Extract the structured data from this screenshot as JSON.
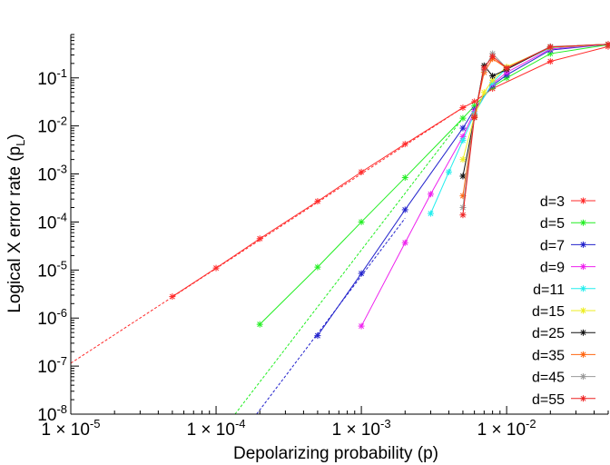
{
  "chart_data": {
    "type": "line",
    "title": "",
    "xlabel": "Depolarizing probability (p)",
    "ylabel": "Logical X error rate (p",
    "ylabel_sub": "L",
    "ylabel_end": ")",
    "x_scale": "log",
    "y_scale": "log",
    "xlim": [
      1e-05,
      0.05
    ],
    "ylim": [
      1e-08,
      0.8
    ],
    "x_ticks": [
      {
        "value": 1e-05,
        "prefix": "1 × 10",
        "exp": "-5"
      },
      {
        "value": 0.0001,
        "prefix": "1 × 10",
        "exp": "-4"
      },
      {
        "value": 0.001,
        "prefix": "1 × 10",
        "exp": "-3"
      },
      {
        "value": 0.01,
        "prefix": "1 × 10",
        "exp": "-2"
      }
    ],
    "y_ticks": [
      {
        "value": 1e-08,
        "prefix": "10",
        "exp": "-8"
      },
      {
        "value": 1e-07,
        "prefix": "10",
        "exp": "-7"
      },
      {
        "value": 1e-06,
        "prefix": "10",
        "exp": "-6"
      },
      {
        "value": 1e-05,
        "prefix": "10",
        "exp": "-5"
      },
      {
        "value": 0.0001,
        "prefix": "10",
        "exp": "-4"
      },
      {
        "value": 0.001,
        "prefix": "10",
        "exp": "-3"
      },
      {
        "value": 0.01,
        "prefix": "10",
        "exp": "-2"
      },
      {
        "value": 0.1,
        "prefix": "10",
        "exp": "-1"
      }
    ],
    "grid": false,
    "legend_position": "right",
    "series": [
      {
        "name": "d=3",
        "color": "#ff2a2a",
        "x": [
          5e-05,
          0.0001,
          0.0002,
          0.0005,
          0.001,
          0.002,
          0.005,
          0.006,
          0.008,
          0.02,
          0.05
        ],
        "y": [
          2.8e-06,
          1.1e-05,
          4.5e-05,
          0.00027,
          0.0011,
          0.0042,
          0.024,
          0.032,
          0.06,
          0.22,
          0.45
        ],
        "fit": {
          "x": [
            1e-05,
            0.005
          ],
          "y": [
            1.15e-07,
            0.024
          ]
        }
      },
      {
        "name": "d=5",
        "color": "#22ee22",
        "x": [
          0.0002,
          0.0005,
          0.001,
          0.002,
          0.005,
          0.006,
          0.008,
          0.01,
          0.02,
          0.05
        ],
        "y": [
          7.4e-07,
          1.15e-05,
          0.0001,
          0.00084,
          0.0145,
          0.026,
          0.065,
          0.1,
          0.32,
          0.49
        ],
        "fit": {
          "x": [
            0.000135,
            0.005
          ],
          "y": [
            1e-08,
            0.0145
          ]
        }
      },
      {
        "name": "d=7",
        "color": "#2222cc",
        "x": [
          0.0005,
          0.001,
          0.002,
          0.005,
          0.006,
          0.008,
          0.01,
          0.02,
          0.05
        ],
        "y": [
          4.3e-07,
          8.5e-06,
          0.00018,
          0.009,
          0.022,
          0.07,
          0.115,
          0.38,
          0.5
        ],
        "fit": {
          "x": [
            0.00019,
            0.002
          ],
          "y": [
            1e-08,
            0.00012
          ]
        }
      },
      {
        "name": "d=9",
        "color": "#ee22ee",
        "x": [
          0.001,
          0.002,
          0.003,
          0.005,
          0.006,
          0.008,
          0.01,
          0.02,
          0.05
        ],
        "y": [
          6.8e-07,
          3.7e-05,
          0.00038,
          0.006,
          0.02,
          0.075,
          0.13,
          0.4,
          0.5
        ],
        "fit": null
      },
      {
        "name": "d=11",
        "color": "#22eeee",
        "x": [
          0.003,
          0.004,
          0.005,
          0.006,
          0.008,
          0.01,
          0.02,
          0.05
        ],
        "y": [
          0.00015,
          0.0011,
          0.005,
          0.018,
          0.08,
          0.16,
          0.42,
          0.5
        ],
        "fit": null
      },
      {
        "name": "d=15",
        "color": "#eeee22",
        "x": [
          0.005,
          0.006,
          0.007,
          0.008,
          0.01,
          0.02,
          0.05
        ],
        "y": [
          0.002,
          0.016,
          0.05,
          0.09,
          0.17,
          0.43,
          0.5
        ],
        "fit": null
      },
      {
        "name": "d=25",
        "color": "#111111",
        "x": [
          0.005,
          0.006,
          0.007,
          0.008,
          0.01,
          0.02,
          0.05
        ],
        "y": [
          0.0009,
          0.015,
          0.18,
          0.11,
          0.15,
          0.44,
          0.5
        ],
        "fit": null
      },
      {
        "name": "d=35",
        "color": "#ff6611",
        "x": [
          0.005,
          0.006,
          0.007,
          0.008,
          0.01,
          0.02,
          0.05
        ],
        "y": [
          0.00035,
          0.016,
          0.13,
          0.25,
          0.16,
          0.44,
          0.5
        ],
        "fit": null
      },
      {
        "name": "d=45",
        "color": "#999999",
        "x": [
          0.005,
          0.006,
          0.007,
          0.008,
          0.01,
          0.02,
          0.05
        ],
        "y": [
          0.0002,
          0.017,
          0.15,
          0.32,
          0.16,
          0.45,
          0.5
        ],
        "fit": null
      },
      {
        "name": "d=55",
        "color": "#ee2222",
        "x": [
          0.005,
          0.006,
          0.007,
          0.008,
          0.01,
          0.02,
          0.05
        ],
        "y": [
          0.00014,
          0.015,
          0.16,
          0.28,
          0.16,
          0.44,
          0.5
        ],
        "fit": null
      }
    ]
  }
}
